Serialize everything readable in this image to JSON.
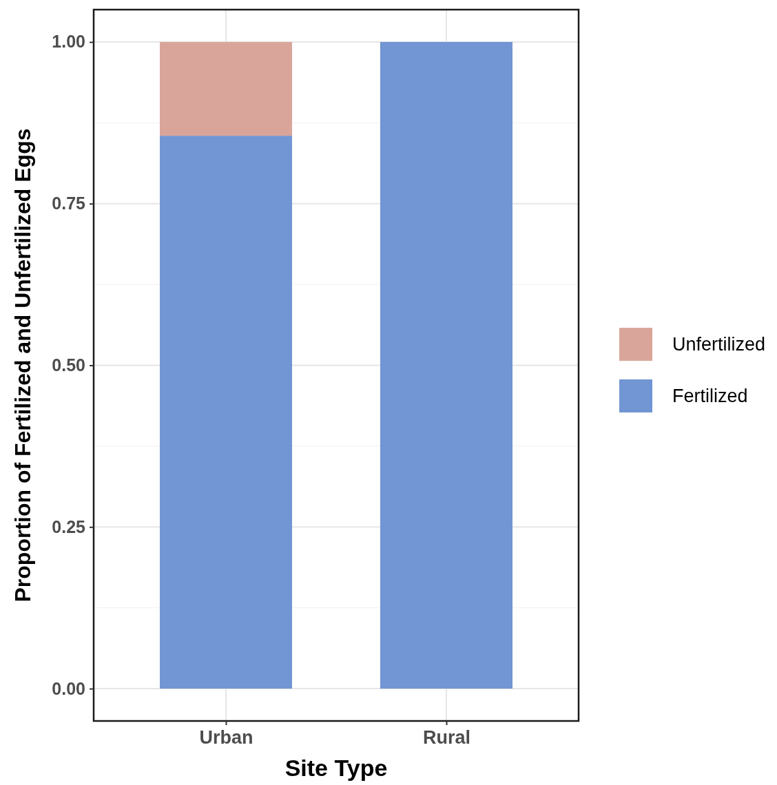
{
  "chart_data": {
    "type": "bar",
    "stacked": true,
    "xlabel": "Site Type",
    "ylabel": "Proportion of Fertilized and Unfertilized Eggs",
    "categories": [
      "Urban",
      "Rural"
    ],
    "series": [
      {
        "name": "Fertilized",
        "color": "#7295d3",
        "values": [
          0.855,
          1.0
        ]
      },
      {
        "name": "Unfertilized",
        "color": "#d9a59a",
        "values": [
          0.145,
          0
        ]
      }
    ],
    "ylim": [
      -0.05,
      1.05
    ],
    "yticks": [
      {
        "value": 0,
        "label": "0.00"
      },
      {
        "value": 0.25,
        "label": "0.25"
      },
      {
        "value": 0.5,
        "label": "0.50"
      },
      {
        "value": 0.75,
        "label": "0.75"
      },
      {
        "value": 1,
        "label": "1.00"
      }
    ],
    "grid": true,
    "legend": "right"
  }
}
